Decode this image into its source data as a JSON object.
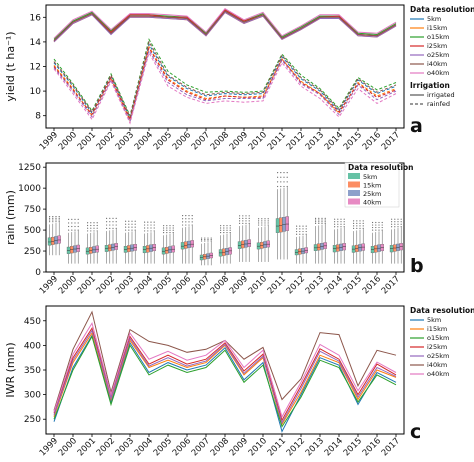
{
  "years": [
    "1999",
    "2000",
    "2001",
    "2002",
    "2003",
    "2004",
    "2005",
    "2006",
    "2007",
    "2008",
    "2009",
    "2010",
    "2011",
    "2012",
    "2013",
    "2014",
    "2015",
    "2016",
    "2017"
  ],
  "chart_data": [
    {
      "panel": "a",
      "type": "line",
      "ylabel": "yield (t ha⁻¹)",
      "ylim": [
        7,
        17
      ],
      "yticks": [
        8,
        10,
        12,
        14,
        16
      ],
      "legend": {
        "title_resolution": "Data resolution",
        "resolutions": [
          "5km",
          "i15km",
          "o15km",
          "i25km",
          "o25km",
          "i40km",
          "o40km"
        ],
        "title_irrigation": "Irrigation",
        "irrigation": [
          "irrigated",
          "rainfed"
        ]
      },
      "colors": [
        "#1f77b4",
        "#ff7f0e",
        "#2ca02c",
        "#d62728",
        "#9467bd",
        "#8c564b",
        "#e377c2"
      ],
      "series": [
        {
          "name": "5km irrigated",
          "values": [
            14.1,
            15.6,
            16.3,
            14.8,
            16.1,
            16.1,
            16.0,
            15.9,
            14.6,
            16.5,
            15.6,
            16.2,
            14.3,
            15.1,
            16.0,
            16.0,
            14.6,
            14.5,
            15.4
          ]
        },
        {
          "name": "i15km irrigated",
          "values": [
            14.0,
            15.5,
            16.2,
            14.7,
            16.0,
            16.0,
            15.9,
            15.8,
            14.5,
            16.4,
            15.5,
            16.1,
            14.2,
            15.0,
            15.9,
            15.9,
            14.5,
            14.4,
            15.3
          ]
        },
        {
          "name": "o15km irrigated",
          "values": [
            14.2,
            15.7,
            16.4,
            14.9,
            16.2,
            16.2,
            16.1,
            16.0,
            14.7,
            16.6,
            15.7,
            16.3,
            14.4,
            15.2,
            16.1,
            16.1,
            14.7,
            14.6,
            15.5
          ]
        },
        {
          "name": "i25km irrigated",
          "values": [
            14.1,
            15.6,
            16.3,
            14.8,
            16.2,
            16.2,
            16.0,
            16.0,
            14.6,
            16.6,
            15.7,
            16.2,
            14.3,
            15.1,
            16.0,
            16.1,
            14.6,
            14.5,
            15.4
          ]
        },
        {
          "name": "o25km irrigated",
          "values": [
            14.0,
            15.5,
            16.2,
            14.6,
            16.0,
            16.0,
            15.9,
            15.8,
            14.5,
            16.4,
            15.5,
            16.1,
            14.2,
            15.0,
            15.9,
            15.9,
            14.5,
            14.4,
            15.3
          ]
        },
        {
          "name": "i40km irrigated",
          "values": [
            14.1,
            15.6,
            16.3,
            14.7,
            16.1,
            16.1,
            16.0,
            15.9,
            14.6,
            16.5,
            15.6,
            16.2,
            14.3,
            15.1,
            16.0,
            16.0,
            14.6,
            14.5,
            15.4
          ]
        },
        {
          "name": "o40km irrigated",
          "values": [
            14.3,
            15.8,
            16.5,
            15.0,
            16.3,
            16.3,
            16.2,
            16.1,
            14.8,
            16.7,
            15.8,
            16.4,
            14.5,
            15.3,
            16.2,
            16.2,
            14.8,
            14.7,
            15.6
          ]
        },
        {
          "name": "5km rainfed",
          "values": [
            12.3,
            10.4,
            8.2,
            11.2,
            7.8,
            13.8,
            11.2,
            10.2,
            9.6,
            9.8,
            9.7,
            9.8,
            12.8,
            11.0,
            10.0,
            8.4,
            10.9,
            9.8,
            10.4
          ]
        },
        {
          "name": "i15km rainfed",
          "values": [
            12.1,
            10.2,
            8.0,
            11.0,
            7.6,
            13.6,
            11.0,
            10.0,
            9.4,
            9.6,
            9.5,
            9.6,
            12.6,
            10.8,
            9.8,
            8.2,
            10.7,
            9.6,
            10.2
          ]
        },
        {
          "name": "o15km rainfed",
          "values": [
            12.6,
            10.6,
            8.4,
            11.4,
            8.0,
            14.2,
            11.6,
            10.5,
            9.9,
            10.0,
            9.9,
            10.0,
            13.0,
            11.3,
            10.2,
            8.6,
            11.1,
            10.1,
            10.7
          ]
        },
        {
          "name": "i25km rainfed",
          "values": [
            12.0,
            10.1,
            8.1,
            11.1,
            7.7,
            13.5,
            10.9,
            9.9,
            9.3,
            9.6,
            9.5,
            9.5,
            12.6,
            10.7,
            9.8,
            8.3,
            10.6,
            9.5,
            10.1
          ]
        },
        {
          "name": "o25km rainfed",
          "values": [
            11.9,
            10.0,
            7.9,
            10.9,
            7.5,
            13.3,
            10.7,
            9.7,
            9.2,
            9.4,
            9.4,
            9.4,
            12.5,
            10.6,
            9.7,
            8.1,
            10.5,
            9.3,
            10.0
          ]
        },
        {
          "name": "i40km rainfed",
          "values": [
            12.4,
            10.5,
            8.3,
            11.3,
            7.9,
            14.0,
            11.3,
            10.3,
            9.7,
            9.9,
            9.8,
            9.9,
            12.9,
            11.1,
            10.1,
            8.5,
            11.0,
            9.9,
            10.5
          ]
        },
        {
          "name": "o40km rainfed",
          "values": [
            11.8,
            9.8,
            7.7,
            10.8,
            7.4,
            13.1,
            10.4,
            9.5,
            9.0,
            9.2,
            9.1,
            9.2,
            12.3,
            10.4,
            9.4,
            7.9,
            10.2,
            9.0,
            9.8
          ]
        }
      ]
    },
    {
      "panel": "b",
      "type": "box",
      "ylabel": "rain (mm)",
      "ylim": [
        0,
        1300
      ],
      "yticks": [
        0,
        250,
        500,
        750,
        1000,
        1250
      ],
      "legend": {
        "title": "Data resolution",
        "items": [
          "5km",
          "15km",
          "25km",
          "40km"
        ]
      },
      "colors": [
        "#66c2a5",
        "#fc8d62",
        "#8da0cb",
        "#e78ac3"
      ],
      "medians": [
        370,
        270,
        260,
        290,
        280,
        280,
        260,
        320,
        185,
        240,
        330,
        320,
        560,
        245,
        300,
        290,
        285,
        280,
        290
      ],
      "q1": [
        330,
        230,
        225,
        255,
        245,
        240,
        225,
        285,
        155,
        200,
        290,
        285,
        480,
        215,
        265,
        250,
        245,
        240,
        250
      ],
      "q3": [
        420,
        310,
        300,
        330,
        320,
        320,
        300,
        365,
        215,
        280,
        375,
        360,
        650,
        280,
        340,
        330,
        325,
        320,
        330
      ],
      "whisker_low": [
        200,
        100,
        100,
        100,
        100,
        100,
        100,
        100,
        80,
        100,
        120,
        120,
        150,
        100,
        100,
        100,
        100,
        100,
        100
      ],
      "whisker_high": [
        580,
        480,
        470,
        500,
        480,
        470,
        450,
        540,
        350,
        450,
        560,
        540,
        1000,
        430,
        560,
        520,
        500,
        480,
        520
      ],
      "max_outlier": [
        660,
        650,
        600,
        660,
        620,
        610,
        560,
        690,
        420,
        560,
        680,
        640,
        1220,
        560,
        640,
        640,
        620,
        600,
        640
      ]
    },
    {
      "panel": "c",
      "type": "line",
      "ylabel": "IWR (mm)",
      "ylim": [
        220,
        480
      ],
      "yticks": [
        250,
        300,
        350,
        400,
        450
      ],
      "legend": {
        "title": "Data resolution",
        "items": [
          "5km",
          "i15km",
          "o15km",
          "i25km",
          "o25km",
          "i40km",
          "o40km"
        ]
      },
      "colors": [
        "#1f77b4",
        "#ff7f0e",
        "#2ca02c",
        "#d62728",
        "#9467bd",
        "#8c564b",
        "#e377c2"
      ],
      "series": [
        {
          "name": "5km",
          "values": [
            245,
            355,
            420,
            285,
            405,
            345,
            365,
            350,
            360,
            395,
            330,
            365,
            225,
            300,
            375,
            360,
            280,
            345,
            325
          ]
        },
        {
          "name": "i15km",
          "values": [
            255,
            365,
            425,
            290,
            410,
            355,
            370,
            355,
            365,
            400,
            340,
            375,
            240,
            305,
            380,
            365,
            290,
            350,
            335
          ]
        },
        {
          "name": "o15km",
          "values": [
            250,
            350,
            418,
            280,
            400,
            340,
            360,
            345,
            355,
            390,
            325,
            360,
            235,
            295,
            370,
            355,
            285,
            340,
            320
          ]
        },
        {
          "name": "i25km",
          "values": [
            262,
            375,
            435,
            298,
            418,
            362,
            380,
            362,
            372,
            405,
            348,
            382,
            248,
            318,
            393,
            372,
            300,
            362,
            340
          ]
        },
        {
          "name": "o25km",
          "values": [
            258,
            370,
            430,
            293,
            414,
            358,
            375,
            358,
            368,
            402,
            343,
            378,
            243,
            312,
            388,
            368,
            295,
            355,
            337
          ]
        },
        {
          "name": "i40km",
          "values": [
            268,
            392,
            468,
            305,
            432,
            408,
            400,
            386,
            392,
            410,
            372,
            396,
            290,
            332,
            426,
            422,
            318,
            390,
            380
          ]
        },
        {
          "name": "o40km",
          "values": [
            265,
            382,
            445,
            300,
            425,
            372,
            388,
            370,
            380,
            410,
            355,
            390,
            255,
            325,
            402,
            380,
            308,
            366,
            345
          ]
        }
      ]
    }
  ],
  "panel_labels": [
    "a",
    "b",
    "c"
  ]
}
